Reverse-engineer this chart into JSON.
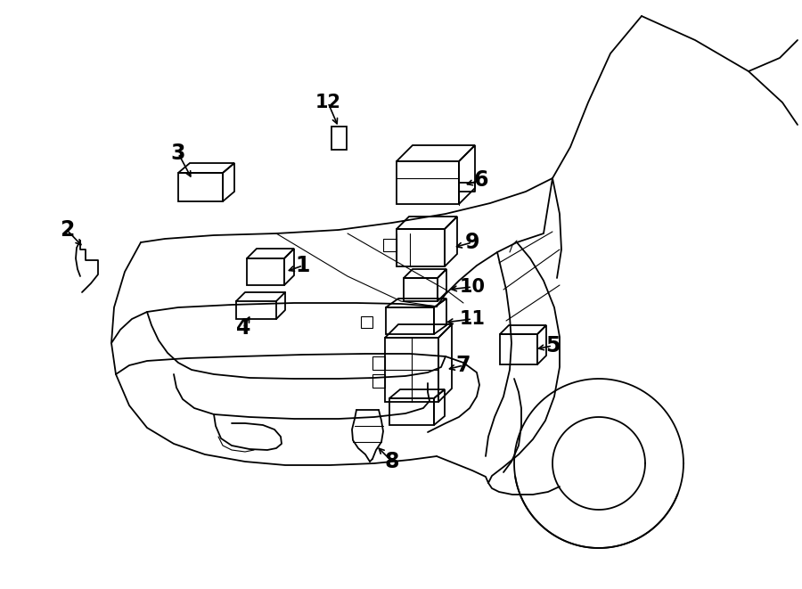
{
  "bg_color": "#ffffff",
  "line_color": "#000000",
  "fig_width": 9.0,
  "fig_height": 6.61,
  "dpi": 100,
  "lw": 1.3,
  "lw_thin": 0.8
}
